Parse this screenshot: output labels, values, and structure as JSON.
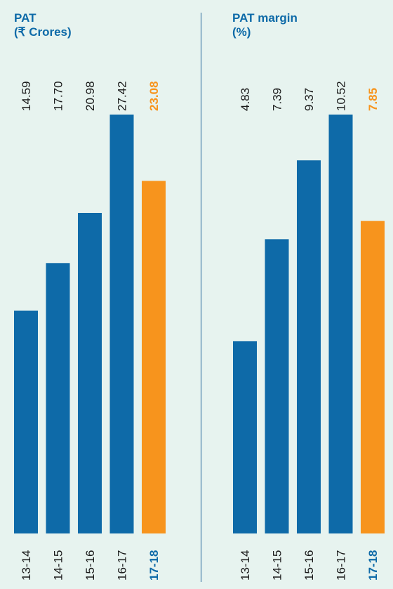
{
  "charts": [
    {
      "title": "PAT",
      "subtitle": "(₹ Crores)",
      "chart_data": {
        "type": "bar",
        "categories": [
          "13-14",
          "14-15",
          "15-16",
          "16-17",
          "17-18"
        ],
        "values": [
          14.59,
          17.7,
          20.98,
          27.42,
          23.08
        ],
        "value_labels": [
          "14.59",
          "17.70",
          "20.98",
          "27.42",
          "23.08"
        ],
        "ylim": [
          0,
          27.42
        ],
        "highlight_index": 4
      }
    },
    {
      "title": "PAT margin",
      "subtitle": "(%)",
      "chart_data": {
        "type": "bar",
        "categories": [
          "13-14",
          "14-15",
          "15-16",
          "16-17",
          "17-18"
        ],
        "values": [
          4.83,
          7.39,
          9.37,
          10.52,
          7.85
        ],
        "value_labels": [
          "4.83",
          "7.39",
          "9.37",
          "10.52",
          "7.85"
        ],
        "ylim": [
          0,
          10.52
        ],
        "highlight_index": 4
      }
    }
  ],
  "colors": {
    "bar": "#0e6aa8",
    "highlight": "#f7941d",
    "text": "#1a1a1a",
    "highlight_label": "#0e6aa8",
    "background": "#e7f3ef"
  }
}
